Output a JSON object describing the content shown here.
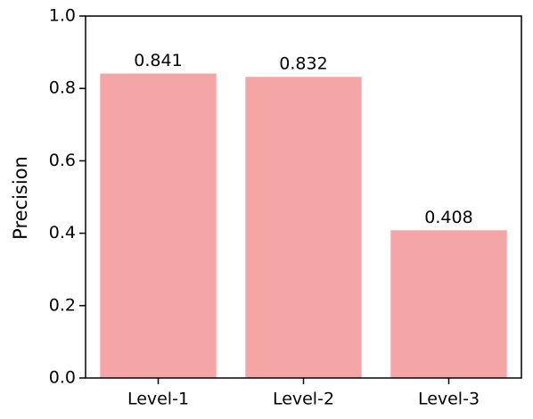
{
  "chart_data": {
    "type": "bar",
    "ylabel": "Precision",
    "categories": [
      "Level-1",
      "Level-2",
      "Level-3"
    ],
    "values": [
      0.841,
      0.832,
      0.408
    ],
    "color": "#f4a6a6",
    "ylim": [
      0,
      1
    ],
    "yticks": [
      {
        "value": 0,
        "label": "0.0"
      },
      0.2,
      0.4,
      0.6,
      0.8,
      {
        "value": 1,
        "label": "1.0"
      }
    ]
  }
}
